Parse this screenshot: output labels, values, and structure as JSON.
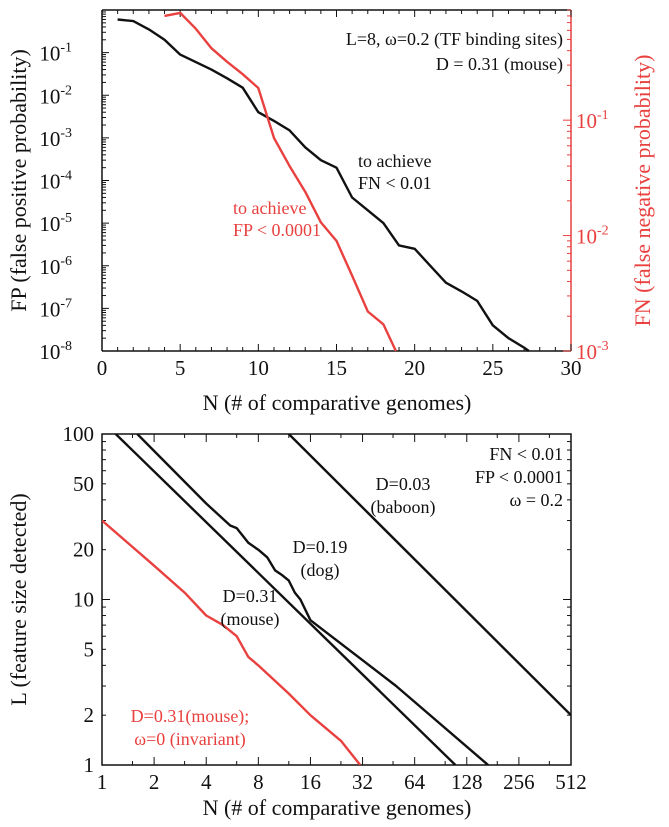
{
  "colors": {
    "black": "#111111",
    "red": "#e8413f"
  },
  "chart_data": [
    {
      "type": "line",
      "xlabel": "N (# of comparative genomes)",
      "ylabel": "FP (false positive probability)",
      "y2label": "FN (false negative probability)",
      "xlim": [
        0,
        30
      ],
      "ylim": [
        1e-08,
        1
      ],
      "y2lim": [
        0.001,
        0.9
      ],
      "yscale": "log",
      "y2scale": "log",
      "grid": false,
      "x_ticks": [
        0,
        5,
        10,
        15,
        20,
        25,
        30
      ],
      "y_ticks": [
        {
          "exp": "-1",
          "value": 0.1
        },
        {
          "exp": "-2",
          "value": 0.01
        },
        {
          "exp": "-3",
          "value": 0.001
        },
        {
          "exp": "-4",
          "value": 0.0001
        },
        {
          "exp": "-5",
          "value": 1e-05
        },
        {
          "exp": "-6",
          "value": 1e-06
        },
        {
          "exp": "-7",
          "value": 1e-07
        },
        {
          "exp": "-8",
          "value": 1e-08
        }
      ],
      "y2_ticks": [
        {
          "exp": "-1",
          "value": 0.1
        },
        {
          "exp": "-2",
          "value": 0.01
        },
        {
          "exp": "-3",
          "value": 0.001
        }
      ],
      "annotations": [
        "L=8, ω=0.2 (TF binding sites)",
        "D = 0.31 (mouse)"
      ],
      "series": [
        {
          "name_lines": [
            "to achieve",
            "FN < 0.01"
          ],
          "color": "#111111",
          "axis": "left",
          "x": [
            1,
            2,
            3,
            4,
            5,
            6,
            7,
            8,
            9,
            10,
            11,
            12,
            13,
            14,
            15,
            16,
            17,
            18,
            19,
            20,
            21,
            22,
            23,
            24,
            25,
            26,
            27,
            27.3
          ],
          "y": [
            0.6,
            0.55,
            0.35,
            0.2,
            0.09,
            0.06,
            0.04,
            0.025,
            0.015,
            0.004,
            0.0025,
            0.0015,
            0.0006,
            0.0003,
            0.0002,
            4e-05,
            2e-05,
            1e-05,
            3e-06,
            2.5e-06,
            1e-06,
            4e-07,
            2.5e-07,
            1.5e-07,
            4e-08,
            2e-08,
            1.2e-08,
            1e-08
          ]
        },
        {
          "name_lines": [
            "to achieve",
            "FP < 0.0001"
          ],
          "color": "#e8413f",
          "axis": "right",
          "x": [
            4,
            5,
            6,
            7,
            8,
            9,
            10,
            11,
            12,
            13,
            14,
            15,
            16,
            17,
            18,
            18.8
          ],
          "y": [
            0.8,
            0.85,
            0.62,
            0.42,
            0.32,
            0.25,
            0.19,
            0.07,
            0.04,
            0.024,
            0.013,
            0.009,
            0.0045,
            0.0022,
            0.0017,
            0.001
          ]
        }
      ]
    },
    {
      "type": "line",
      "xlabel": "N (# of comparative genomes)",
      "ylabel": "L (feature size detected)",
      "xscale": "log2",
      "yscale": "log",
      "xlim": [
        1,
        512
      ],
      "ylim": [
        1,
        100
      ],
      "grid": false,
      "x_ticks": [
        1,
        2,
        4,
        8,
        16,
        32,
        64,
        128,
        256,
        512
      ],
      "y_ticks": [
        1,
        2,
        5,
        10,
        20,
        50,
        100
      ],
      "annotations": [
        "FN < 0.01",
        "FP < 0.0001",
        "ω = 0.2"
      ],
      "series": [
        {
          "name_lines": [
            "D=0.03",
            "(baboon)"
          ],
          "color": "#111111",
          "x": [
            12,
            512
          ],
          "y": [
            100,
            2.0
          ]
        },
        {
          "name_lines": [
            "D=0.19",
            "(dog)"
          ],
          "color": "#111111",
          "x": [
            1.6,
            4,
            5.5,
            6,
            7,
            8,
            9,
            10,
            11,
            12,
            13,
            14,
            16,
            50,
            170
          ],
          "y": [
            100,
            38,
            28,
            27,
            22,
            20,
            18,
            15,
            14,
            13,
            11,
            10,
            7.5,
            3,
            1
          ]
        },
        {
          "name_lines": [
            "D=0.31",
            "(mouse)"
          ],
          "color": "#111111",
          "x": [
            1.2,
            110
          ],
          "y": [
            100,
            1
          ]
        },
        {
          "name_lines": [
            "D=0.31(mouse);",
            "ω=0 (invariant)"
          ],
          "color": "#e8413f",
          "x": [
            1,
            2,
            3,
            4,
            5,
            6,
            7,
            8,
            12,
            16,
            24,
            31
          ],
          "y": [
            30,
            16,
            11,
            8,
            7,
            6,
            4.5,
            4,
            2.7,
            2,
            1.4,
            1
          ]
        }
      ]
    }
  ]
}
